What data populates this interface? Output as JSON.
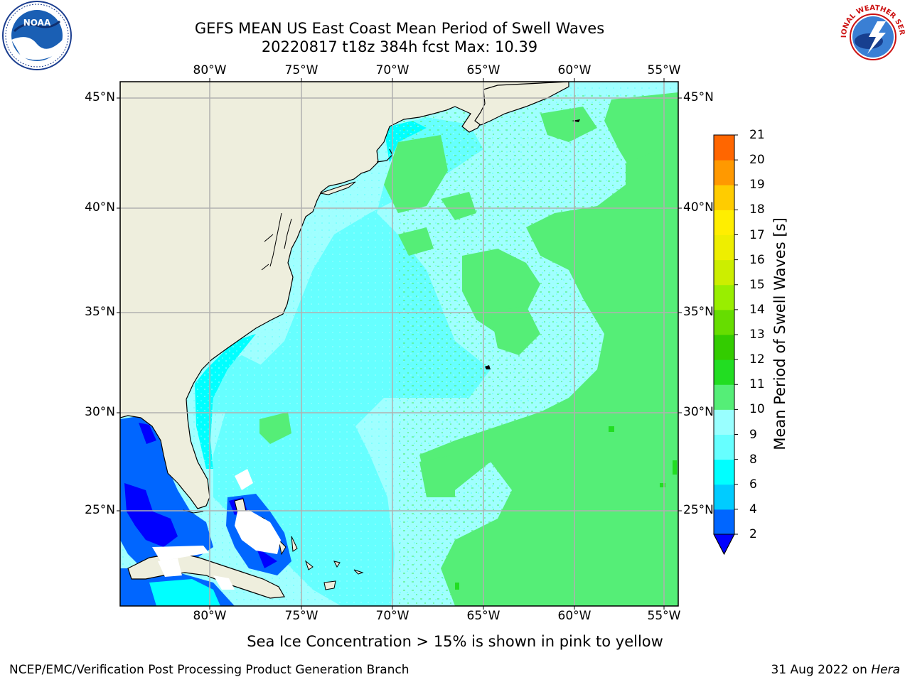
{
  "header": {
    "title_line1": "GEFS MEAN US East Coast Mean Period of Swell Waves",
    "title_line2": "20220817 t18z 384h fcst   Max: 10.39"
  },
  "logos": {
    "left": {
      "name": "noaa-logo",
      "text": "NOAA"
    },
    "right": {
      "name": "nws-logo",
      "text": "NATIONAL WEATHER SERVICE"
    }
  },
  "map": {
    "projection": "plate-carree",
    "lon_range": [
      -85,
      -54.2
    ],
    "lat_range": [
      20.4,
      45.8
    ],
    "lon_ticks": [
      "80°W",
      "75°W",
      "70°W",
      "65°W",
      "60°W",
      "55°W"
    ],
    "lat_ticks": [
      "45°N",
      "40°N",
      "35°N",
      "30°N",
      "25°N"
    ],
    "grid": true,
    "land_color": "#eeeedd",
    "ocean_dominant_color": "#a0ffff"
  },
  "colorbar": {
    "label": "Mean Period of Swell Waves [s]",
    "ticks": [
      "21",
      "20",
      "19",
      "18",
      "17",
      "16",
      "15",
      "14",
      "13",
      "12",
      "11",
      "10",
      "9",
      "8",
      "6",
      "4",
      "2"
    ],
    "levels": [
      2,
      4,
      6,
      8,
      9,
      10,
      11,
      12,
      13,
      14,
      15,
      16,
      17,
      18,
      19,
      20,
      21
    ],
    "colors": [
      "#0066ff",
      "#00ccff",
      "#00ffff",
      "#66ffff",
      "#99ffff",
      "#55ee77",
      "#22dd22",
      "#33cc00",
      "#66dd00",
      "#99ee00",
      "#ccee00",
      "#eeee00",
      "#ffee00",
      "#ffcc00",
      "#ff9900",
      "#ff6600",
      "#ff3300",
      "#ff0000"
    ],
    "under_color": "#0000ff"
  },
  "footer": {
    "note": "Sea Ice Concentration > 15% is shown in pink to yellow",
    "credit": "NCEP/EMC/Verification Post Processing Product Generation Branch",
    "date": "31 Aug 2022 on ",
    "machine": "Hera"
  }
}
